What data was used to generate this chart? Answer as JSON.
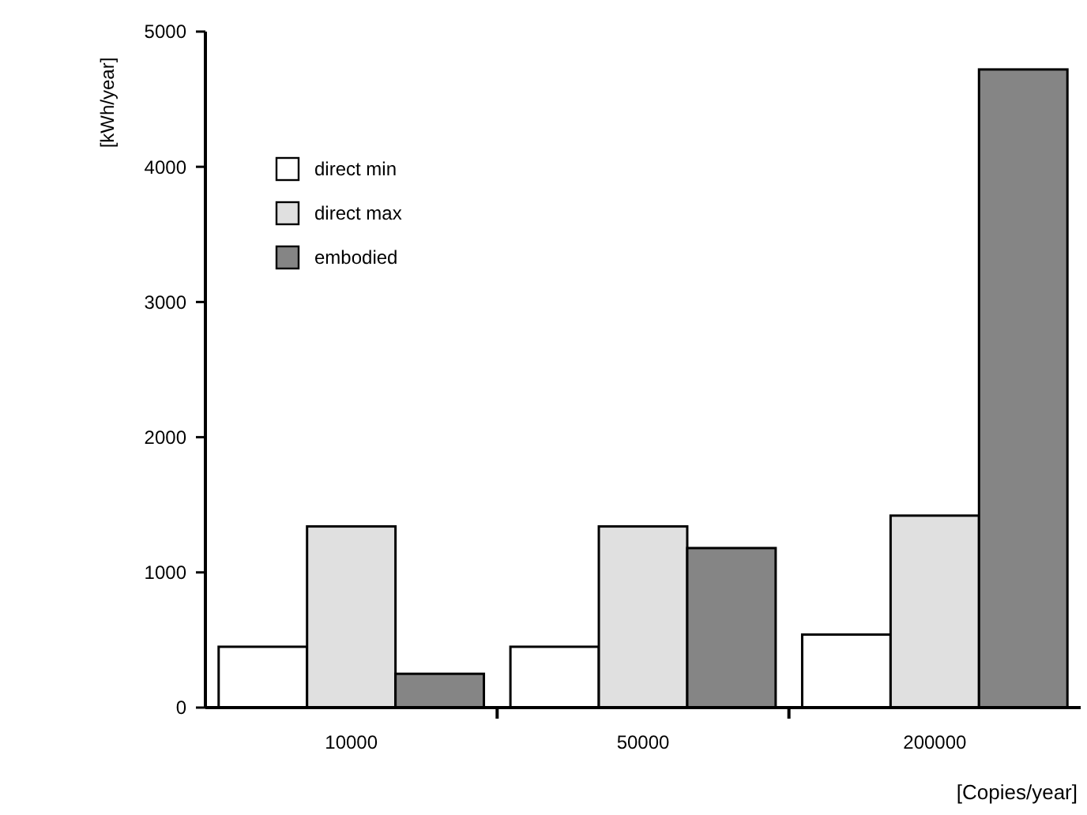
{
  "chart_data": {
    "type": "bar",
    "xlabel": "[Copies/year]",
    "ylabel": "[kWh/year]",
    "categories": [
      "10000",
      "50000",
      "200000"
    ],
    "series": [
      {
        "name": "direct min",
        "color": "#ffffff",
        "values": [
          450,
          450,
          540
        ]
      },
      {
        "name": "direct max",
        "color": "#e0e0e0",
        "values": [
          1340,
          1340,
          1420
        ]
      },
      {
        "name": "embodied",
        "color": "#858585",
        "values": [
          250,
          1180,
          4720
        ]
      }
    ],
    "ylim": [
      0,
      5000
    ],
    "yticks": [
      0,
      1000,
      2000,
      3000,
      4000,
      5000
    ],
    "grid": false,
    "legend": "top left"
  }
}
